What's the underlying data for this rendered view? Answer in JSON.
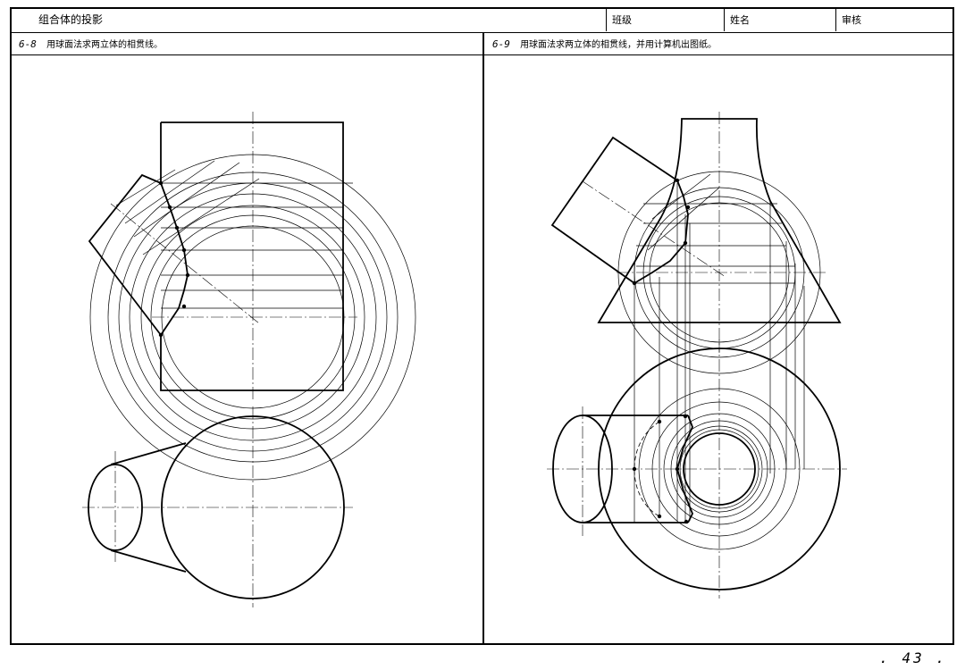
{
  "header": {
    "title": "组合体的投影",
    "class_label": "班级",
    "name_label": "姓名",
    "review_label": "审核"
  },
  "problems": [
    {
      "number": "6-8",
      "text": "用球面法求两立体的相贯线。"
    },
    {
      "number": "6-9",
      "text": "用球面法求两立体的相贯线，并用计算机出图纸。"
    }
  ],
  "page_number": ". 43 ."
}
